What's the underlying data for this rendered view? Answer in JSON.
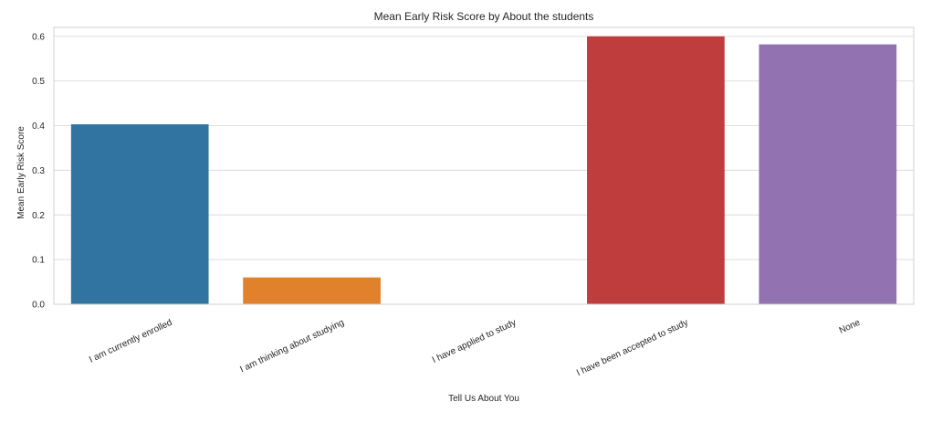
{
  "chart_data": {
    "type": "bar",
    "title": "Mean Early Risk Score by About the students",
    "xlabel": "Tell Us About You",
    "ylabel": "Mean Early Risk Score",
    "categories": [
      "I am currently enrolled",
      "I am thinking about studying",
      "I have applied to study",
      "I have been accepted to study",
      "None"
    ],
    "values": [
      0.403,
      0.06,
      0.0,
      0.6,
      0.582
    ],
    "colors": [
      "#3274a1",
      "#e1812c",
      "#3a923a",
      "#c03d3e",
      "#9372b2"
    ],
    "ylim": [
      0,
      0.62
    ],
    "yticks": [
      0.0,
      0.1,
      0.2,
      0.3,
      0.4,
      0.5,
      0.6
    ],
    "ytick_labels": [
      "0.0",
      "0.1",
      "0.2",
      "0.3",
      "0.4",
      "0.5",
      "0.6"
    ],
    "grid": true,
    "legend": "none"
  }
}
